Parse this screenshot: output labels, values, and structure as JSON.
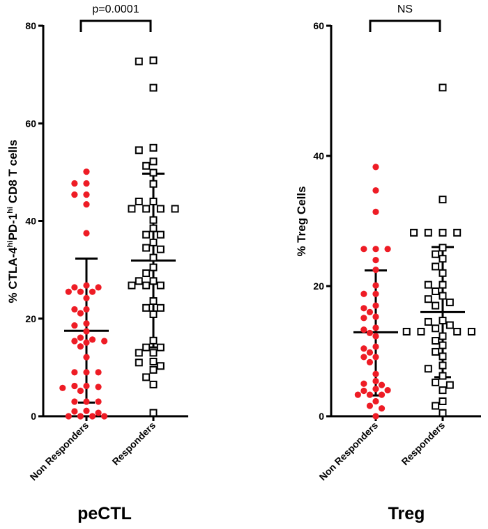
{
  "chart_data": [
    {
      "type": "scatter",
      "title": "peCTL",
      "ylabel_parts": [
        "% CTLA-4",
        "hi",
        "PD-1",
        "hi",
        " CD8 T cells"
      ],
      "ylabel": "% CTLA-4hiPD-1hi CD8 T cells",
      "ylim": [
        0,
        80
      ],
      "yticks": [
        0,
        20,
        40,
        60,
        80
      ],
      "categories": [
        "Non Responders",
        "Responders"
      ],
      "annotation": "p=0.0001",
      "series": [
        {
          "marker": "circle",
          "color": "#ee1c25",
          "values": [
            50.1,
            47.7,
            47.7,
            45.4,
            45.4,
            43.4,
            37.5,
            26.8,
            26.4,
            26.4,
            25.5,
            25.5,
            25.5,
            24.2,
            21.9,
            21.1,
            21.9,
            19.0,
            18.6,
            17.4,
            16.1,
            15.4,
            15.1,
            15.4,
            15.7,
            14.3,
            12.1,
            9.0,
            9.0,
            9.0,
            6.2,
            6.0,
            5.2,
            5.8,
            6.2,
            3.0,
            3.0,
            3.0,
            1.1,
            0.7,
            0,
            0,
            0,
            0,
            1.0
          ],
          "mean": 17.5,
          "sd_upper": 32.3,
          "sd_lower": 2.8
        },
        {
          "marker": "open-square",
          "color": "#000000",
          "values": [
            72.9,
            72.7,
            67.3,
            55.0,
            54.5,
            52.2,
            51.3,
            49.9,
            47.6,
            44.0,
            44.0,
            42.5,
            42.5,
            42.5,
            42.5,
            40.2,
            38.5,
            37.2,
            37.2,
            35.6,
            34.5,
            34.2,
            32.5,
            30.5,
            29.3,
            27.7,
            27.7,
            26.8,
            26.8,
            26.8,
            23.6,
            22.2,
            22.2,
            20.9,
            15.5,
            14.1,
            14.1,
            13.0,
            13.0,
            11.2,
            10.3,
            11.0,
            9.5,
            8.0,
            6.5,
            0.7
          ],
          "mean": 31.9,
          "sd_upper": 49.7,
          "sd_lower": 14.1
        }
      ]
    },
    {
      "type": "scatter",
      "title": "Treg",
      "ylabel": "% Treg Cells",
      "ylim": [
        0,
        60
      ],
      "yticks": [
        0,
        20,
        40,
        60
      ],
      "categories": [
        "Non Responders",
        "Responders"
      ],
      "annotation": "NS",
      "series": [
        {
          "marker": "circle",
          "color": "#ee1c25",
          "values": [
            38.3,
            34.7,
            31.4,
            25.7,
            25.7,
            25.7,
            24.0,
            22.5,
            20.1,
            18.8,
            18.8,
            17.0,
            16.6,
            16.0,
            15.1,
            15.3,
            13.6,
            13.3,
            12.8,
            12.3,
            10.7,
            10.4,
            9.8,
            9.1,
            9.1,
            8.3,
            6.5,
            5.4,
            5.0,
            4.8,
            4.2,
            3.9,
            4.0,
            3.3,
            3.3,
            3.3,
            2.3,
            1.6,
            1.2,
            0
          ],
          "mean": 12.9,
          "sd_upper": 22.4,
          "sd_lower": 3.2
        },
        {
          "marker": "open-square",
          "color": "#000000",
          "values": [
            50.5,
            33.3,
            28.2,
            28.2,
            28.2,
            28.2,
            25.9,
            24.9,
            24.2,
            23.0,
            22.0,
            20.2,
            20.2,
            19.2,
            18.5,
            18.0,
            17.5,
            17.0,
            14.5,
            14.7,
            14.0,
            13.5,
            13.0,
            13.0,
            13.0,
            13.0,
            12.3,
            11.6,
            10.9,
            9.9,
            9.2,
            7.8,
            7.3,
            6.2,
            5.2,
            4.8,
            4.0,
            2.3,
            1.6,
            0.5
          ],
          "mean": 16.0,
          "sd_upper": 26.0,
          "sd_lower": 6.0
        }
      ]
    }
  ]
}
